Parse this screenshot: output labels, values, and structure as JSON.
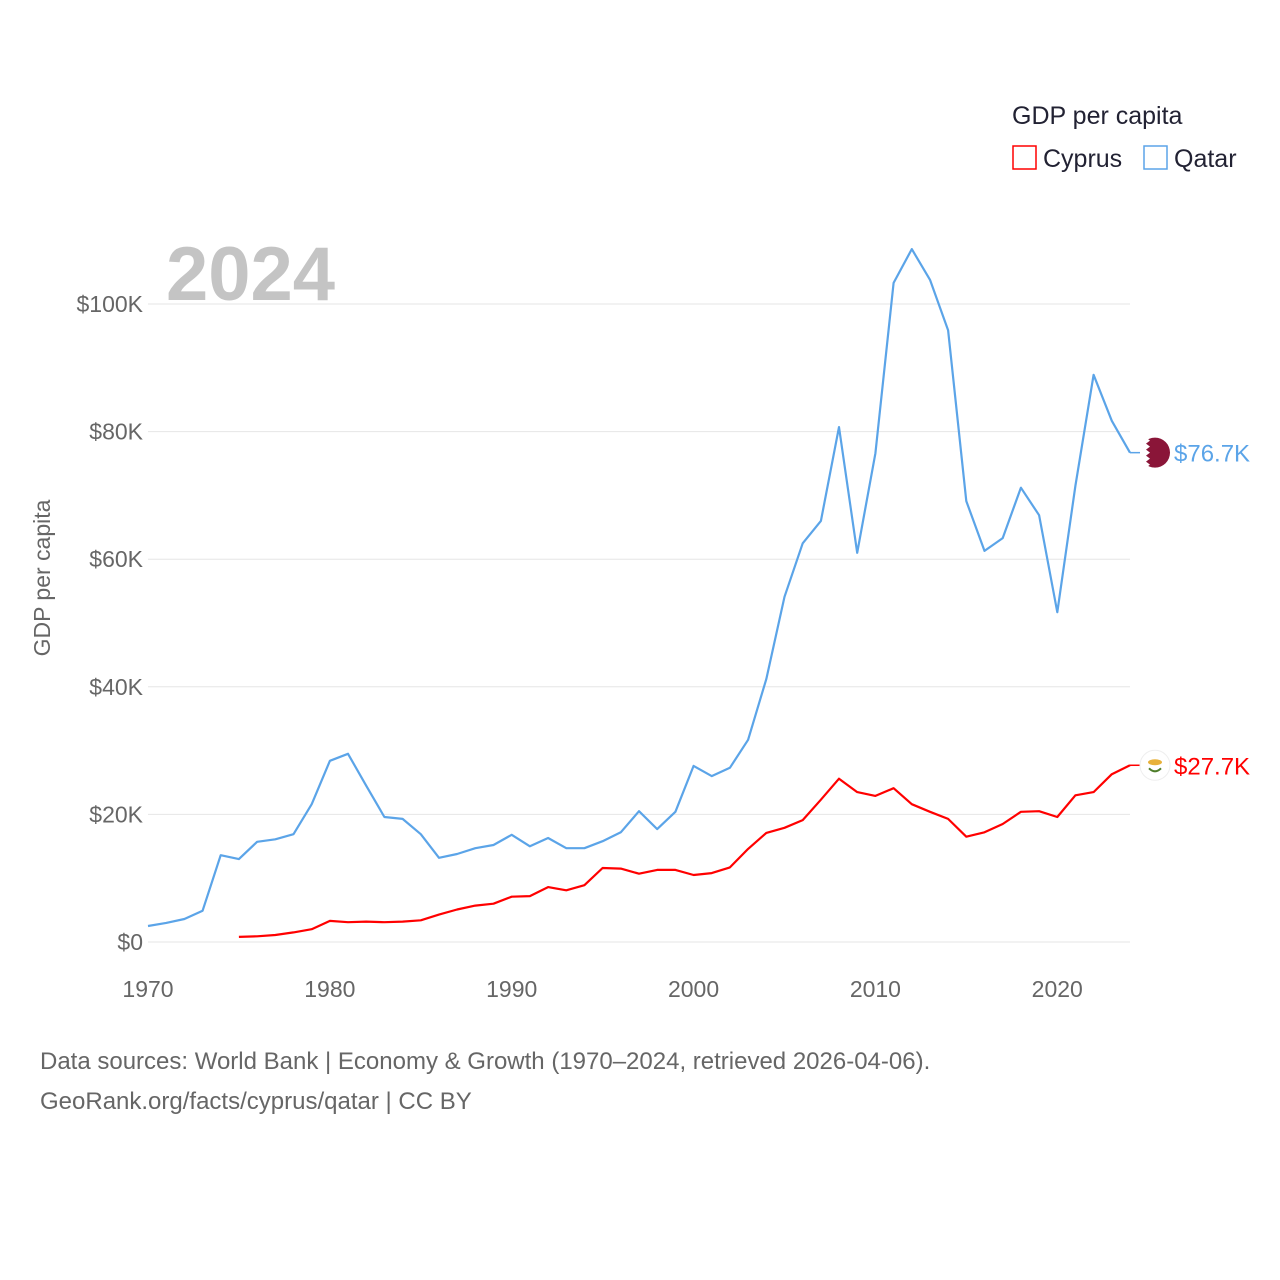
{
  "chart_data": {
    "type": "line",
    "title": "GDP per capita",
    "ylabel": "GDP per capita",
    "xlabel": "",
    "year_label": "2024",
    "xlim": [
      1970,
      2024
    ],
    "ylim": [
      0,
      110000
    ],
    "x_ticks": [
      1970,
      1980,
      1990,
      2000,
      2010,
      2020
    ],
    "y_ticks": [
      0,
      20000,
      40000,
      60000,
      80000,
      100000
    ],
    "y_tick_labels": [
      "$0",
      "$20K",
      "$40K",
      "$60K",
      "$80K",
      "$100K"
    ],
    "grid": true,
    "legend_placement": "top-right",
    "series": [
      {
        "name": "Cyprus",
        "color": "#ff0000",
        "end_label": "$27.7K",
        "start_year": 1975,
        "values": [
          800,
          900,
          1100,
          1500,
          2000,
          3300,
          3100,
          3200,
          3100,
          3200,
          3400,
          4300,
          5100,
          5700,
          6000,
          7100,
          7200,
          8600,
          8100,
          8900,
          11600,
          11500,
          10700,
          11300,
          11300,
          10500,
          10800,
          11700,
          14600,
          17100,
          17900,
          19100,
          22300,
          25600,
          23500,
          22900,
          24100,
          21600,
          20400,
          19300,
          16500,
          17200,
          18500,
          20400,
          20500,
          19600,
          23000,
          23500,
          26300,
          27700
        ]
      },
      {
        "name": "Qatar",
        "color": "#5ba4e8",
        "end_label": "$76.7K",
        "start_year": 1970,
        "values": [
          2500,
          3000,
          3600,
          4900,
          13600,
          13000,
          15700,
          16100,
          16900,
          21600,
          28400,
          29500,
          24500,
          19600,
          19300,
          16900,
          13200,
          13800,
          14700,
          15200,
          16800,
          15000,
          16300,
          14700,
          14700,
          15800,
          17200,
          20500,
          17700,
          20400,
          27600,
          26000,
          27300,
          31700,
          41200,
          54100,
          62500,
          66000,
          80700,
          61000,
          76600,
          103300,
          108600,
          103800,
          95900,
          69100,
          61300,
          63300,
          71200,
          66900,
          51700,
          71500,
          88900,
          81700,
          76700
        ]
      }
    ]
  },
  "footer": {
    "line1": "Data sources: World Bank | Economy & Growth (1970–2024, retrieved 2026-04-06).",
    "line2": "GeoRank.org/facts/cyprus/qatar | CC BY"
  }
}
